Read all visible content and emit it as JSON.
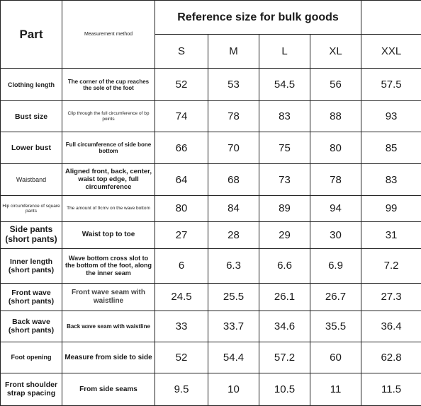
{
  "header": {
    "part": "Part",
    "method": "Measurement method",
    "reference": "Reference size for bulk goods",
    "sizes": [
      "S",
      "M",
      "L",
      "XL",
      "XXL"
    ]
  },
  "rows": [
    {
      "part": "Clothing length",
      "method": "The corner of the cup reaches the sole of the foot",
      "values": [
        "52",
        "53",
        "54.5",
        "56",
        "57.5"
      ]
    },
    {
      "part": "Bust size",
      "method": "Clip through the full circumference of bp points",
      "values": [
        "74",
        "78",
        "83",
        "88",
        "93"
      ]
    },
    {
      "part": "Lower bust",
      "method": "Full circumference of side bone bottom",
      "values": [
        "66",
        "70",
        "75",
        "80",
        "85"
      ]
    },
    {
      "part": "Waistband",
      "method": "Aligned front, back, center, waist top edge, full circumference",
      "values": [
        "64",
        "68",
        "73",
        "78",
        "83"
      ]
    },
    {
      "part": "Hip circumference of square pants",
      "method": "The amount of 9cmv on the wave bottom",
      "values": [
        "80",
        "84",
        "89",
        "94",
        "99"
      ]
    },
    {
      "part": "Side pants (short pants)",
      "method": "Waist top to toe",
      "values": [
        "27",
        "28",
        "29",
        "30",
        "31"
      ]
    },
    {
      "part": "Inner length (short pants)",
      "method": "Wave bottom cross slot to the bottom of the foot, along the inner seam",
      "values": [
        "6",
        "6.3",
        "6.6",
        "6.9",
        "7.2"
      ]
    },
    {
      "part": "Front wave (short pants)",
      "method": "Front wave seam with waistline",
      "values": [
        "24.5",
        "25.5",
        "26.1",
        "26.7",
        "27.3"
      ]
    },
    {
      "part": "Back wave (short pants)",
      "method": "Back wave seam with waistline",
      "values": [
        "33",
        "33.7",
        "34.6",
        "35.5",
        "36.4"
      ]
    },
    {
      "part": "Foot opening",
      "method": "Measure from side to side",
      "values": [
        "52",
        "54.4",
        "57.2",
        "60",
        "62.8"
      ]
    },
    {
      "part": "Front shoulder strap spacing",
      "method": "From side seams",
      "values": [
        "9.5",
        "10",
        "10.5",
        "11",
        "11.5"
      ]
    }
  ]
}
